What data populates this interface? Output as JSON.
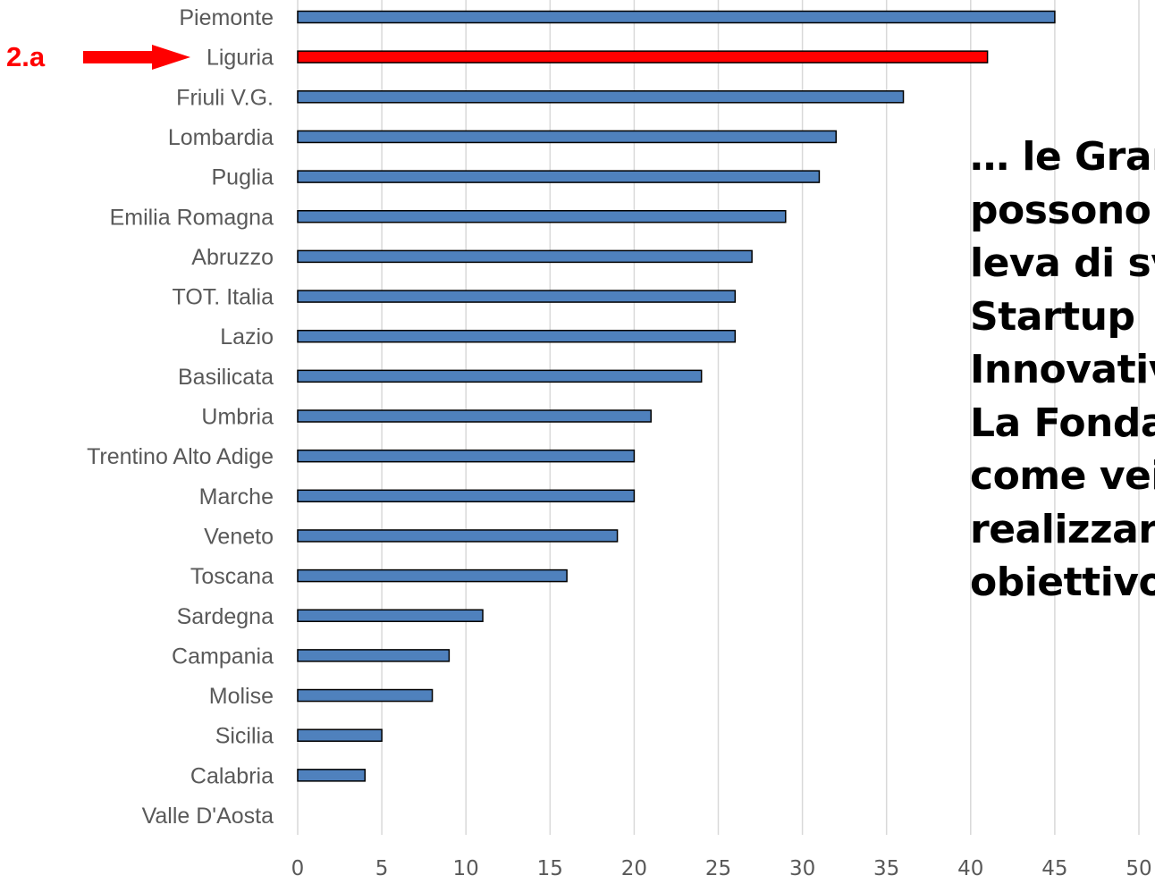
{
  "chart_data": {
    "type": "bar",
    "orientation": "horizontal",
    "categories": [
      "Piemonte",
      "Liguria",
      "Friuli V.G.",
      "Lombardia",
      "Puglia",
      "Emilia Romagna",
      "Abruzzo",
      "TOT. Italia",
      "Lazio",
      "Basilicata",
      "Umbria",
      "Trentino Alto Adige",
      "Marche",
      "Veneto",
      "Toscana",
      "Sardegna",
      "Campania",
      "Molise",
      "Sicilia",
      "Calabria",
      "Valle D'Aosta"
    ],
    "values": [
      45,
      41,
      36,
      32,
      31,
      29,
      27,
      26,
      26,
      24,
      21,
      20,
      20,
      19,
      16,
      11,
      9,
      8,
      5,
      4,
      0
    ],
    "highlight": "Liguria",
    "xlim": [
      0,
      50
    ],
    "xticks": [
      "0",
      "5",
      "10",
      "15",
      "20",
      "25",
      "30",
      "35",
      "40",
      "45",
      "50"
    ],
    "grid": true,
    "title": "",
    "xlabel": "",
    "ylabel": "",
    "colors": {
      "bar": "#4f81bd",
      "highlight": "#ff0000",
      "outline": "#000000",
      "grid": "#d9d9d9",
      "label": "#595959"
    }
  },
  "callout": {
    "label": "2.a",
    "color": "#ff0000",
    "icon": "right-arrow-icon"
  },
  "side_text": {
    "lines": [
      "… le Grandi Imprese",
      "possono essere una",
      "leva di sviluppo delle",
      "Startup",
      "Innovative.",
      "La Fondazione Ticino",
      "come veicolo per",
      "realizzare questo",
      "obiettivo"
    ]
  }
}
